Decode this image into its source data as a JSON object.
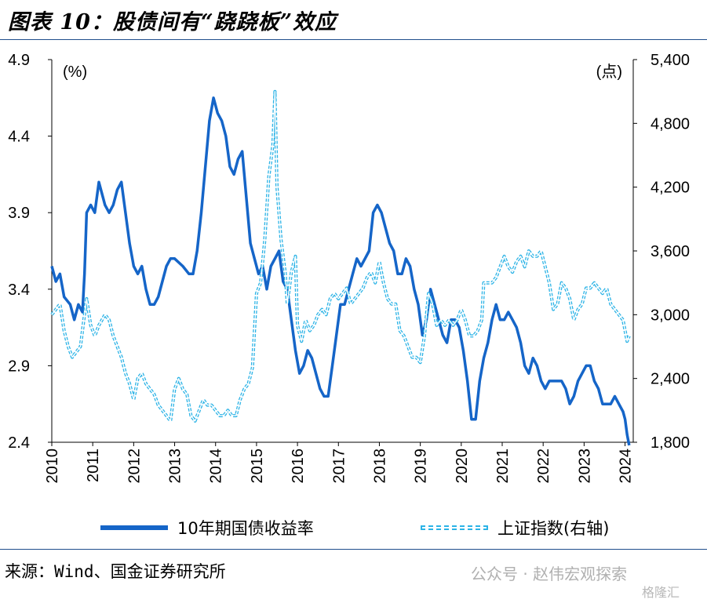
{
  "title": "图表 10：股债间有“跷跷板”效应",
  "source": "来源：Wind、国金证券研究所",
  "watermark": "公众号 · 赵伟宏观探索",
  "watermark_logo": "格隆汇",
  "colors": {
    "yield": "#1565c8",
    "index": "#2cb3e6",
    "rule": "#1f4e8c"
  },
  "legend_position": "bottom",
  "chart_data": {
    "type": "line",
    "left_unit": "(%)",
    "right_unit": "(点)",
    "ylim_left": [
      2.4,
      4.9
    ],
    "ylim_right": [
      1800,
      5400
    ],
    "yticks_left": [
      "2.4",
      "2.9",
      "3.4",
      "3.9",
      "4.4",
      "4.9"
    ],
    "yticks_right": [
      "1,800",
      "2,400",
      "3,000",
      "3,600",
      "4,200",
      "4,800",
      "5,400"
    ],
    "xlim": [
      2010.0,
      2024.2
    ],
    "xticks": [
      "2010",
      "2011",
      "2012",
      "2013",
      "2014",
      "2015",
      "2016",
      "2017",
      "2018",
      "2019",
      "2020",
      "2021",
      "2022",
      "2023",
      "2024"
    ],
    "grid": false,
    "series": [
      {
        "name": "10年期国债收益率",
        "axis": "left",
        "style": "solid",
        "points": [
          [
            2010.0,
            3.55
          ],
          [
            2010.1,
            3.45
          ],
          [
            2010.2,
            3.5
          ],
          [
            2010.3,
            3.35
          ],
          [
            2010.45,
            3.3
          ],
          [
            2010.55,
            3.2
          ],
          [
            2010.65,
            3.3
          ],
          [
            2010.75,
            3.25
          ],
          [
            2010.8,
            3.5
          ],
          [
            2010.85,
            3.9
          ],
          [
            2010.95,
            3.95
          ],
          [
            2011.05,
            3.9
          ],
          [
            2011.15,
            4.1
          ],
          [
            2011.3,
            3.95
          ],
          [
            2011.4,
            3.9
          ],
          [
            2011.5,
            3.95
          ],
          [
            2011.6,
            4.05
          ],
          [
            2011.7,
            4.1
          ],
          [
            2011.8,
            3.9
          ],
          [
            2011.9,
            3.7
          ],
          [
            2012.0,
            3.55
          ],
          [
            2012.1,
            3.5
          ],
          [
            2012.2,
            3.55
          ],
          [
            2012.3,
            3.4
          ],
          [
            2012.4,
            3.3
          ],
          [
            2012.5,
            3.3
          ],
          [
            2012.6,
            3.35
          ],
          [
            2012.7,
            3.45
          ],
          [
            2012.8,
            3.55
          ],
          [
            2012.9,
            3.6
          ],
          [
            2013.0,
            3.6
          ],
          [
            2013.2,
            3.55
          ],
          [
            2013.35,
            3.5
          ],
          [
            2013.45,
            3.5
          ],
          [
            2013.55,
            3.65
          ],
          [
            2013.65,
            3.9
          ],
          [
            2013.75,
            4.2
          ],
          [
            2013.85,
            4.5
          ],
          [
            2013.95,
            4.65
          ],
          [
            2014.05,
            4.55
          ],
          [
            2014.15,
            4.5
          ],
          [
            2014.25,
            4.4
          ],
          [
            2014.35,
            4.2
          ],
          [
            2014.45,
            4.15
          ],
          [
            2014.55,
            4.25
          ],
          [
            2014.65,
            4.3
          ],
          [
            2014.75,
            4.0
          ],
          [
            2014.85,
            3.7
          ],
          [
            2014.95,
            3.6
          ],
          [
            2015.05,
            3.5
          ],
          [
            2015.15,
            3.55
          ],
          [
            2015.25,
            3.4
          ],
          [
            2015.35,
            3.55
          ],
          [
            2015.45,
            3.6
          ],
          [
            2015.55,
            3.65
          ],
          [
            2015.65,
            3.45
          ],
          [
            2015.75,
            3.4
          ],
          [
            2015.85,
            3.2
          ],
          [
            2015.95,
            3.0
          ],
          [
            2016.05,
            2.85
          ],
          [
            2016.15,
            2.9
          ],
          [
            2016.25,
            3.0
          ],
          [
            2016.35,
            2.95
          ],
          [
            2016.45,
            2.85
          ],
          [
            2016.55,
            2.75
          ],
          [
            2016.65,
            2.7
          ],
          [
            2016.75,
            2.7
          ],
          [
            2016.85,
            2.9
          ],
          [
            2016.95,
            3.1
          ],
          [
            2017.05,
            3.3
          ],
          [
            2017.15,
            3.3
          ],
          [
            2017.25,
            3.4
          ],
          [
            2017.35,
            3.5
          ],
          [
            2017.45,
            3.6
          ],
          [
            2017.55,
            3.55
          ],
          [
            2017.65,
            3.6
          ],
          [
            2017.75,
            3.65
          ],
          [
            2017.85,
            3.9
          ],
          [
            2017.95,
            3.95
          ],
          [
            2018.05,
            3.9
          ],
          [
            2018.15,
            3.8
          ],
          [
            2018.25,
            3.7
          ],
          [
            2018.35,
            3.65
          ],
          [
            2018.45,
            3.5
          ],
          [
            2018.55,
            3.5
          ],
          [
            2018.65,
            3.6
          ],
          [
            2018.75,
            3.55
          ],
          [
            2018.85,
            3.4
          ],
          [
            2018.95,
            3.3
          ],
          [
            2019.05,
            3.1
          ],
          [
            2019.15,
            3.2
          ],
          [
            2019.25,
            3.4
          ],
          [
            2019.35,
            3.3
          ],
          [
            2019.45,
            3.2
          ],
          [
            2019.55,
            3.1
          ],
          [
            2019.65,
            3.05
          ],
          [
            2019.75,
            3.2
          ],
          [
            2019.85,
            3.2
          ],
          [
            2019.95,
            3.15
          ],
          [
            2020.05,
            3.0
          ],
          [
            2020.15,
            2.8
          ],
          [
            2020.25,
            2.55
          ],
          [
            2020.35,
            2.55
          ],
          [
            2020.45,
            2.8
          ],
          [
            2020.55,
            2.95
          ],
          [
            2020.65,
            3.05
          ],
          [
            2020.75,
            3.2
          ],
          [
            2020.85,
            3.3
          ],
          [
            2020.95,
            3.2
          ],
          [
            2021.05,
            3.2
          ],
          [
            2021.15,
            3.25
          ],
          [
            2021.25,
            3.2
          ],
          [
            2021.35,
            3.15
          ],
          [
            2021.45,
            3.05
          ],
          [
            2021.55,
            2.9
          ],
          [
            2021.65,
            2.85
          ],
          [
            2021.75,
            2.95
          ],
          [
            2021.85,
            2.9
          ],
          [
            2021.95,
            2.8
          ],
          [
            2022.05,
            2.75
          ],
          [
            2022.15,
            2.8
          ],
          [
            2022.25,
            2.8
          ],
          [
            2022.35,
            2.8
          ],
          [
            2022.45,
            2.8
          ],
          [
            2022.55,
            2.75
          ],
          [
            2022.65,
            2.65
          ],
          [
            2022.75,
            2.7
          ],
          [
            2022.85,
            2.8
          ],
          [
            2022.95,
            2.85
          ],
          [
            2023.05,
            2.9
          ],
          [
            2023.15,
            2.9
          ],
          [
            2023.25,
            2.8
          ],
          [
            2023.35,
            2.75
          ],
          [
            2023.45,
            2.65
          ],
          [
            2023.55,
            2.65
          ],
          [
            2023.65,
            2.65
          ],
          [
            2023.75,
            2.7
          ],
          [
            2023.85,
            2.65
          ],
          [
            2023.95,
            2.6
          ],
          [
            2024.0,
            2.55
          ],
          [
            2024.05,
            2.45
          ],
          [
            2024.1,
            2.38
          ]
        ]
      },
      {
        "name": "上证指数(右轴)",
        "axis": "right",
        "style": "dashed",
        "points": [
          [
            2010.0,
            3000
          ],
          [
            2010.1,
            3050
          ],
          [
            2010.2,
            3100
          ],
          [
            2010.3,
            2850
          ],
          [
            2010.4,
            2700
          ],
          [
            2010.5,
            2600
          ],
          [
            2010.6,
            2650
          ],
          [
            2010.7,
            2700
          ],
          [
            2010.8,
            3000
          ],
          [
            2010.85,
            3150
          ],
          [
            2010.95,
            2900
          ],
          [
            2011.05,
            2800
          ],
          [
            2011.15,
            2900
          ],
          [
            2011.3,
            3000
          ],
          [
            2011.4,
            2950
          ],
          [
            2011.5,
            2800
          ],
          [
            2011.6,
            2700
          ],
          [
            2011.7,
            2600
          ],
          [
            2011.8,
            2450
          ],
          [
            2011.9,
            2350
          ],
          [
            2012.0,
            2200
          ],
          [
            2012.1,
            2400
          ],
          [
            2012.2,
            2450
          ],
          [
            2012.3,
            2350
          ],
          [
            2012.4,
            2300
          ],
          [
            2012.5,
            2250
          ],
          [
            2012.6,
            2150
          ],
          [
            2012.7,
            2100
          ],
          [
            2012.8,
            2050
          ],
          [
            2012.9,
            2000
          ],
          [
            2013.0,
            2300
          ],
          [
            2013.1,
            2400
          ],
          [
            2013.2,
            2300
          ],
          [
            2013.3,
            2250
          ],
          [
            2013.4,
            2050
          ],
          [
            2013.5,
            2000
          ],
          [
            2013.6,
            2100
          ],
          [
            2013.7,
            2200
          ],
          [
            2013.8,
            2150
          ],
          [
            2013.9,
            2150
          ],
          [
            2014.0,
            2100
          ],
          [
            2014.1,
            2050
          ],
          [
            2014.2,
            2050
          ],
          [
            2014.3,
            2100
          ],
          [
            2014.4,
            2050
          ],
          [
            2014.5,
            2050
          ],
          [
            2014.6,
            2200
          ],
          [
            2014.7,
            2300
          ],
          [
            2014.8,
            2350
          ],
          [
            2014.9,
            2500
          ],
          [
            2015.0,
            3200
          ],
          [
            2015.1,
            3300
          ],
          [
            2015.2,
            3700
          ],
          [
            2015.3,
            4300
          ],
          [
            2015.4,
            4600
          ],
          [
            2015.45,
            5100
          ],
          [
            2015.5,
            4200
          ],
          [
            2015.6,
            3700
          ],
          [
            2015.7,
            3400
          ],
          [
            2015.75,
            3100
          ],
          [
            2015.85,
            3400
          ],
          [
            2015.95,
            3550
          ],
          [
            2016.0,
            2900
          ],
          [
            2016.1,
            2750
          ],
          [
            2016.2,
            2950
          ],
          [
            2016.3,
            2850
          ],
          [
            2016.4,
            2900
          ],
          [
            2016.5,
            3000
          ],
          [
            2016.6,
            3050
          ],
          [
            2016.7,
            3000
          ],
          [
            2016.8,
            3150
          ],
          [
            2016.9,
            3200
          ],
          [
            2017.0,
            3150
          ],
          [
            2017.1,
            3200
          ],
          [
            2017.2,
            3250
          ],
          [
            2017.3,
            3100
          ],
          [
            2017.4,
            3150
          ],
          [
            2017.5,
            3200
          ],
          [
            2017.6,
            3250
          ],
          [
            2017.7,
            3350
          ],
          [
            2017.8,
            3400
          ],
          [
            2017.9,
            3300
          ],
          [
            2018.0,
            3500
          ],
          [
            2018.1,
            3300
          ],
          [
            2018.2,
            3150
          ],
          [
            2018.3,
            3100
          ],
          [
            2018.4,
            3100
          ],
          [
            2018.5,
            2850
          ],
          [
            2018.6,
            2800
          ],
          [
            2018.7,
            2700
          ],
          [
            2018.8,
            2600
          ],
          [
            2018.9,
            2600
          ],
          [
            2019.0,
            2550
          ],
          [
            2019.1,
            2800
          ],
          [
            2019.2,
            3200
          ],
          [
            2019.3,
            3100
          ],
          [
            2019.4,
            2900
          ],
          [
            2019.5,
            2950
          ],
          [
            2019.6,
            2900
          ],
          [
            2019.7,
            2950
          ],
          [
            2019.8,
            2900
          ],
          [
            2019.9,
            2950
          ],
          [
            2020.0,
            3050
          ],
          [
            2020.1,
            2950
          ],
          [
            2020.2,
            2800
          ],
          [
            2020.3,
            2800
          ],
          [
            2020.4,
            2850
          ],
          [
            2020.5,
            2950
          ],
          [
            2020.55,
            3300
          ],
          [
            2020.65,
            3300
          ],
          [
            2020.75,
            3300
          ],
          [
            2020.85,
            3350
          ],
          [
            2020.95,
            3450
          ],
          [
            2021.05,
            3550
          ],
          [
            2021.15,
            3450
          ],
          [
            2021.25,
            3400
          ],
          [
            2021.35,
            3500
          ],
          [
            2021.45,
            3550
          ],
          [
            2021.55,
            3450
          ],
          [
            2021.65,
            3600
          ],
          [
            2021.75,
            3550
          ],
          [
            2021.85,
            3550
          ],
          [
            2021.95,
            3600
          ],
          [
            2022.05,
            3450
          ],
          [
            2022.15,
            3300
          ],
          [
            2022.25,
            3050
          ],
          [
            2022.35,
            3100
          ],
          [
            2022.45,
            3300
          ],
          [
            2022.55,
            3250
          ],
          [
            2022.65,
            3150
          ],
          [
            2022.75,
            2950
          ],
          [
            2022.85,
            3050
          ],
          [
            2022.95,
            3100
          ],
          [
            2023.05,
            3250
          ],
          [
            2023.15,
            3250
          ],
          [
            2023.25,
            3300
          ],
          [
            2023.35,
            3250
          ],
          [
            2023.45,
            3200
          ],
          [
            2023.55,
            3250
          ],
          [
            2023.65,
            3100
          ],
          [
            2023.75,
            3050
          ],
          [
            2023.85,
            3000
          ],
          [
            2023.95,
            2950
          ],
          [
            2024.0,
            2850
          ],
          [
            2024.05,
            2750
          ],
          [
            2024.1,
            2800
          ]
        ]
      }
    ]
  }
}
